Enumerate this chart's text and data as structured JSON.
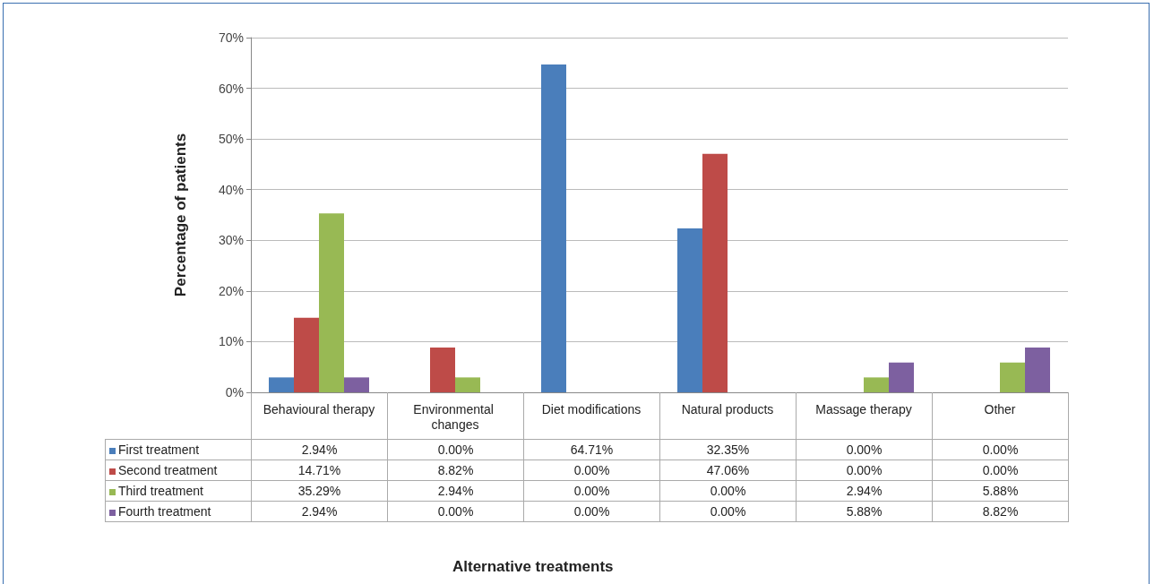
{
  "chart_data": {
    "type": "bar",
    "annotations": [
      "Alternative treatments"
    ],
    "ylabel": "Percentage of patients",
    "categories": [
      "Behavioural therapy",
      "Environmental changes",
      "Diet modifications",
      "Natural products",
      "Massage therapy",
      "Other"
    ],
    "series": [
      {
        "name": "First treatment",
        "color": "#4a7ebb",
        "values": [
          2.94,
          0.0,
          64.71,
          32.35,
          0.0,
          0.0
        ],
        "value_labels": [
          "2.94%",
          "0.00%",
          "64.71%",
          "32.35%",
          "0.00%",
          "0.00%"
        ]
      },
      {
        "name": "Second treatment",
        "color": "#be4b48",
        "values": [
          14.71,
          8.82,
          0.0,
          47.06,
          0.0,
          0.0
        ],
        "value_labels": [
          "14.71%",
          "8.82%",
          "0.00%",
          "47.06%",
          "0.00%",
          "0.00%"
        ]
      },
      {
        "name": "Third treatment",
        "color": "#98b954",
        "values": [
          35.29,
          2.94,
          0.0,
          0.0,
          2.94,
          5.88
        ],
        "value_labels": [
          "35.29%",
          "2.94%",
          "0.00%",
          "0.00%",
          "2.94%",
          "5.88%"
        ]
      },
      {
        "name": "Fourth treatment",
        "color": "#7d60a0",
        "values": [
          2.94,
          0.0,
          0.0,
          0.0,
          5.88,
          8.82
        ],
        "value_labels": [
          "2.94%",
          "0.00%",
          "0.00%",
          "0.00%",
          "5.88%",
          "8.82%"
        ]
      }
    ],
    "ylim": [
      0,
      70
    ],
    "yticks": [
      {
        "value": 0,
        "label": "0%"
      },
      {
        "value": 10,
        "label": "10%"
      },
      {
        "value": 20,
        "label": "20%"
      },
      {
        "value": 30,
        "label": "30%"
      },
      {
        "value": 40,
        "label": "40%"
      },
      {
        "value": 50,
        "label": "50%"
      },
      {
        "value": 60,
        "label": "60%"
      },
      {
        "value": 70,
        "label": "70%"
      }
    ],
    "grid": "y",
    "legend": "bottom left"
  }
}
